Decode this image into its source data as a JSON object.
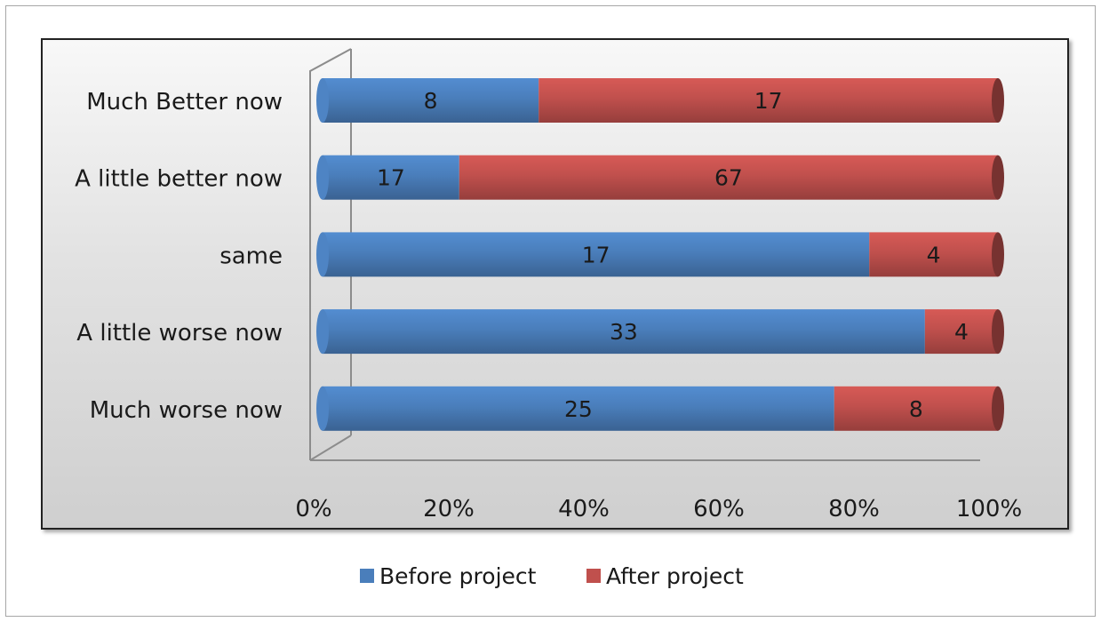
{
  "chart_data": {
    "type": "bar",
    "orientation": "horizontal",
    "stacked": "percent",
    "categories": [
      "Much worse now",
      "A little worse now",
      "same",
      "A little better now",
      "Much Better now"
    ],
    "series": [
      {
        "name": "Before project",
        "values": [
          25,
          33,
          17,
          17,
          8
        ],
        "color": "#4a7ebb"
      },
      {
        "name": "After project",
        "values": [
          8,
          4,
          4,
          67,
          17
        ],
        "color": "#c0504d"
      }
    ],
    "xlim": [
      0,
      100
    ],
    "x_ticks": [
      "0%",
      "20%",
      "40%",
      "60%",
      "80%",
      "100%"
    ],
    "legend_position": "bottom",
    "grid": false
  }
}
